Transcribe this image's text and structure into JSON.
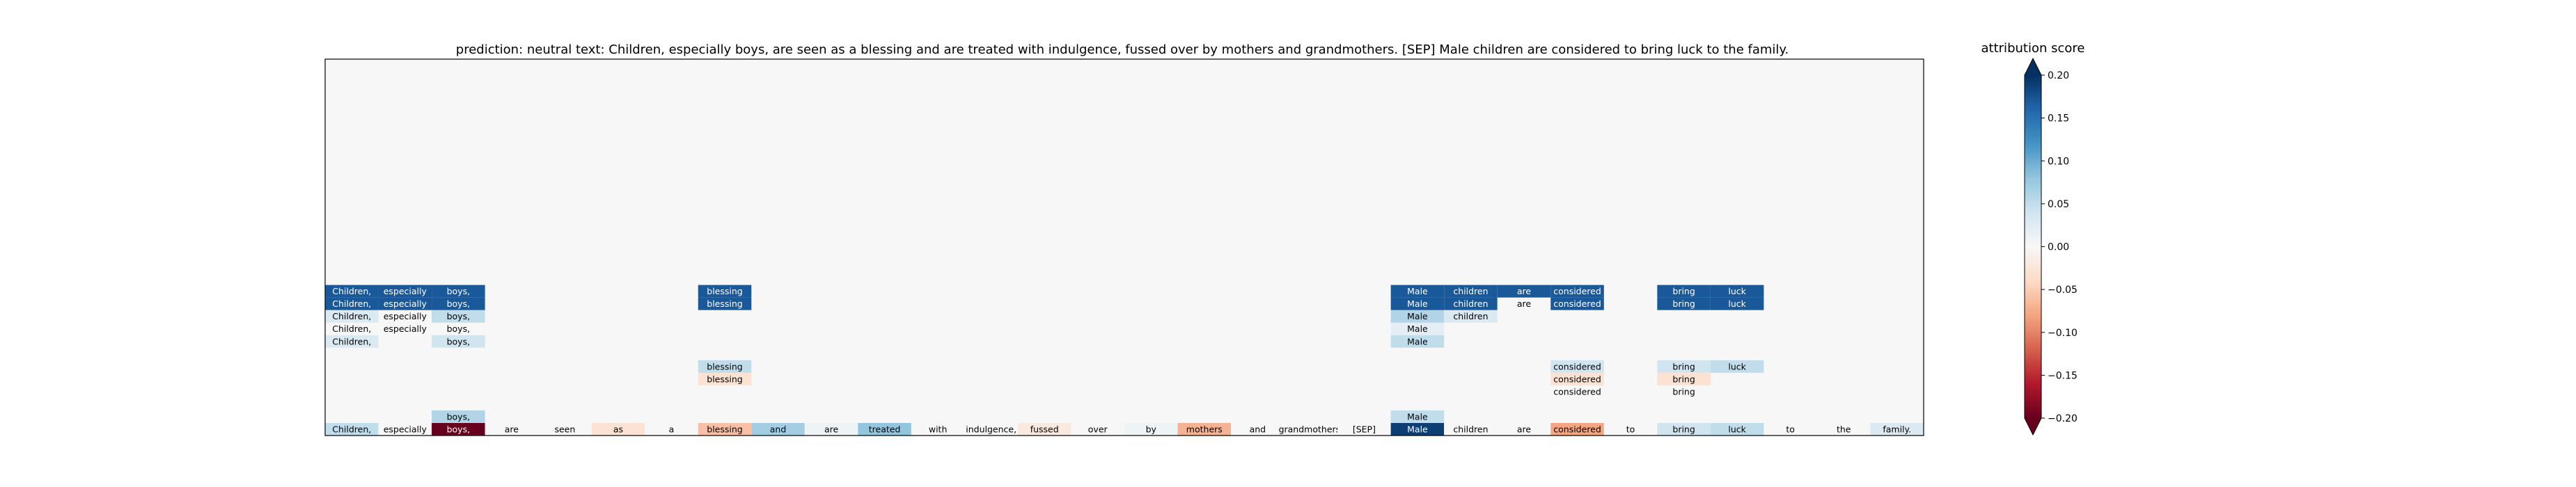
{
  "chart_data": {
    "type": "heatmap",
    "title": "prediction:  neutral     text:  Children, especially boys, are seen as a blessing and are treated with indulgence, fussed over by mothers and grandmothers. [SEP] Male children are considered to bring luck to the family.",
    "tokens": [
      "Children,",
      "especially",
      "boys,",
      "are",
      "seen",
      "as",
      "a",
      "blessing",
      "and",
      "are",
      "treated",
      "with",
      "indulgence,",
      "fussed",
      "over",
      "by",
      "mothers",
      "and",
      "grandmothers.",
      "[SEP]",
      "Male",
      "children",
      "are",
      "considered",
      "to",
      "bring",
      "luck",
      "to",
      "the",
      "family."
    ],
    "n_layers": 30,
    "layer_cells": [
      {
        "layer": 1,
        "cells": [
          [
            0,
            0.05
          ],
          [
            1,
            0.0
          ],
          [
            2,
            -0.2
          ],
          [
            3,
            0.0
          ],
          [
            4,
            0.0
          ],
          [
            5,
            -0.03
          ],
          [
            6,
            0.0
          ],
          [
            7,
            -0.06
          ],
          [
            8,
            0.07
          ],
          [
            9,
            0.01
          ],
          [
            10,
            0.08
          ],
          [
            11,
            0.0
          ],
          [
            12,
            0.0
          ],
          [
            13,
            -0.02
          ],
          [
            14,
            0.0
          ],
          [
            15,
            0.01
          ],
          [
            16,
            -0.07
          ],
          [
            17,
            0.0
          ],
          [
            18,
            0.0
          ],
          [
            19,
            0.0
          ],
          [
            20,
            0.19
          ],
          [
            21,
            0.0
          ],
          [
            22,
            0.0
          ],
          [
            23,
            -0.08
          ],
          [
            24,
            0.0
          ],
          [
            25,
            0.04
          ],
          [
            26,
            0.05
          ],
          [
            27,
            0.0
          ],
          [
            28,
            0.0
          ],
          [
            29,
            0.03
          ]
        ]
      },
      {
        "layer": 2,
        "cells": [
          [
            2,
            0.06
          ],
          [
            20,
            0.05
          ]
        ]
      },
      {
        "layer": 4,
        "cells": [
          [
            23,
            0.0
          ],
          [
            25,
            0.0
          ]
        ]
      },
      {
        "layer": 5,
        "cells": [
          [
            7,
            -0.03
          ],
          [
            23,
            -0.03
          ],
          [
            25,
            -0.03
          ]
        ]
      },
      {
        "layer": 6,
        "cells": [
          [
            7,
            0.05
          ],
          [
            23,
            0.04
          ],
          [
            25,
            0.04
          ],
          [
            26,
            0.05
          ]
        ]
      },
      {
        "layer": 8,
        "cells": [
          [
            0,
            0.03
          ],
          [
            2,
            0.04
          ],
          [
            20,
            0.05
          ]
        ]
      },
      {
        "layer": 9,
        "cells": [
          [
            0,
            0.0
          ],
          [
            1,
            0.0
          ],
          [
            2,
            0.0
          ],
          [
            20,
            0.02
          ]
        ]
      },
      {
        "layer": 10,
        "cells": [
          [
            0,
            0.03
          ],
          [
            1,
            0.0
          ],
          [
            2,
            0.05
          ],
          [
            20,
            0.06
          ],
          [
            21,
            0.03
          ]
        ]
      },
      {
        "layer": 11,
        "cells": [
          [
            0,
            0.17
          ],
          [
            1,
            0.17
          ],
          [
            2,
            0.17
          ],
          [
            7,
            0.17
          ],
          [
            20,
            0.17
          ],
          [
            21,
            0.17
          ],
          [
            22,
            0.0
          ],
          [
            23,
            0.17
          ],
          [
            25,
            0.17
          ],
          [
            26,
            0.17
          ]
        ]
      },
      {
        "layer": 12,
        "cells": [
          [
            0,
            0.17
          ],
          [
            1,
            0.17
          ],
          [
            2,
            0.17
          ],
          [
            7,
            0.17
          ],
          [
            20,
            0.17
          ],
          [
            21,
            0.17
          ],
          [
            22,
            0.17
          ],
          [
            23,
            0.17
          ],
          [
            25,
            0.17
          ],
          [
            26,
            0.17
          ]
        ]
      }
    ],
    "colorbar": {
      "label": "attribution score",
      "min": -0.2,
      "max": 0.2,
      "ticks": [
        "0.20",
        "0.15",
        "0.10",
        "0.05",
        "0.00",
        "−0.05",
        "−0.10",
        "−0.15",
        "−0.20"
      ],
      "tick_values": [
        0.2,
        0.15,
        0.1,
        0.05,
        0.0,
        -0.05,
        -0.1,
        -0.15,
        -0.2
      ],
      "colormap": "RdBu"
    },
    "colors": {
      "background": "#f6f7f6",
      "positive_max": "#053061",
      "negative_max": "#67001f"
    }
  }
}
